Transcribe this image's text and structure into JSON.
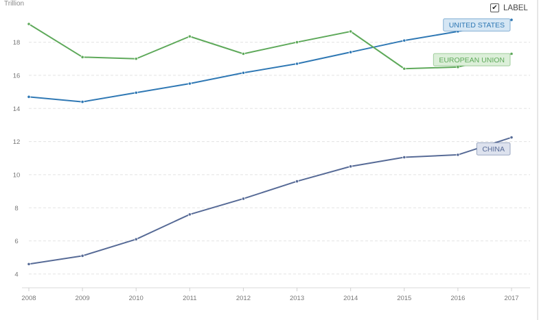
{
  "unit_label": "Trillion",
  "label_toggle": {
    "text": "LABEL",
    "checked": true,
    "check_glyph": "✔"
  },
  "chart_data": {
    "type": "line",
    "x": [
      2008,
      2009,
      2010,
      2011,
      2012,
      2013,
      2014,
      2015,
      2016,
      2017
    ],
    "x_tick_labels": [
      "2008",
      "2009",
      "2010",
      "2011",
      "2012",
      "2013",
      "2014",
      "2015",
      "2016",
      "2017"
    ],
    "y_ticks": [
      4,
      6,
      8,
      10,
      12,
      14,
      16,
      18
    ],
    "ylim": [
      3.5,
      20.3
    ],
    "grid": true,
    "series": [
      {
        "name": "UNITED STATES",
        "color": "#2f78b4",
        "label_bg": "#d5e6f4",
        "values": [
          14.7,
          14.4,
          14.95,
          15.5,
          16.15,
          16.7,
          17.4,
          18.1,
          18.65,
          19.35
        ]
      },
      {
        "name": "EUROPEAN UNION",
        "color": "#5ea95a",
        "label_bg": "#dcefd9",
        "values": [
          19.1,
          17.1,
          17.0,
          18.35,
          17.3,
          18.0,
          18.65,
          16.4,
          16.5,
          17.3
        ]
      },
      {
        "name": "CHINA",
        "color": "#566a96",
        "label_bg": "#dde2ee",
        "values": [
          4.6,
          5.1,
          6.1,
          7.6,
          8.55,
          9.6,
          10.5,
          11.05,
          11.2,
          12.25
        ]
      }
    ]
  }
}
